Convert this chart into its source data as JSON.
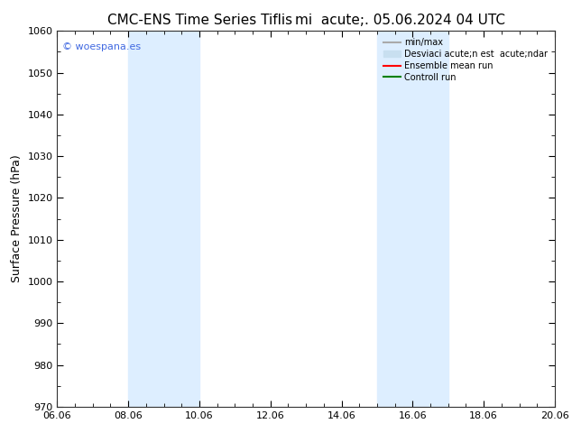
{
  "title": "CMC-ENS Time Series Tiflis",
  "title_right": "mi  acute;. 05.06.2024 04 UTC",
  "ylabel": "Surface Pressure (hPa)",
  "ylim": [
    970,
    1060
  ],
  "yticks": [
    970,
    980,
    990,
    1000,
    1010,
    1020,
    1030,
    1040,
    1050,
    1060
  ],
  "xtick_labels": [
    "06.06",
    "08.06",
    "10.06",
    "12.06",
    "14.06",
    "16.06",
    "18.06",
    "20.06"
  ],
  "xtick_positions": [
    0,
    2,
    4,
    6,
    8,
    10,
    12,
    14
  ],
  "watermark": "© woespana.es",
  "watermark_color": "#4169E1",
  "bg_color": "#ffffff",
  "plot_bg_color": "#ffffff",
  "shaded_regions": [
    {
      "x_start": 2,
      "x_end": 4,
      "color": "#ddeeff"
    },
    {
      "x_start": 9,
      "x_end": 11,
      "color": "#ddeeff"
    }
  ],
  "legend_entries": [
    {
      "label": "min/max",
      "color": "#aaaaaa",
      "lw": 1.5,
      "type": "line"
    },
    {
      "label": "Desviaci acute;n est  acute;ndar",
      "color": "#c8dff0",
      "lw": 8,
      "type": "patch"
    },
    {
      "label": "Ensemble mean run",
      "color": "#ff0000",
      "lw": 1.5,
      "type": "line"
    },
    {
      "label": "Controll run",
      "color": "#008000",
      "lw": 1.5,
      "type": "line"
    }
  ],
  "title_fontsize": 11,
  "axis_label_fontsize": 9,
  "tick_fontsize": 8
}
